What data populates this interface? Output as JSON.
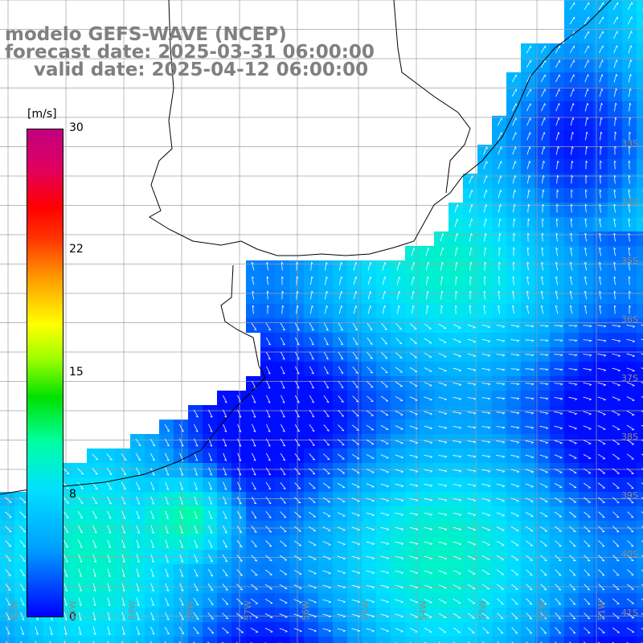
{
  "title": {
    "line1": "modelo GEFS-WAVE (NCEP)",
    "line2": "forecast date: 2025-03-31 06:00:00",
    "line3": "valid date: 2025-04-12 06:00:00"
  },
  "colorbar": {
    "unit": "[m/s]",
    "ticks": [
      "30",
      "22",
      "15",
      "8",
      "0"
    ],
    "tick_values": [
      30,
      22,
      15,
      8,
      0
    ],
    "range": [
      0,
      30
    ],
    "colors": [
      "#0000ff",
      "#00a0ff",
      "#00e0ff",
      "#00ffa0",
      "#00e000",
      "#a0ff00",
      "#ffff00",
      "#ffa000",
      "#ff0000",
      "#c00080"
    ]
  },
  "grid": {
    "lat_labels": [
      "33S",
      "34S",
      "35S",
      "36S",
      "37S",
      "38S",
      "39S",
      "40S",
      "41S"
    ],
    "lon_labels": [
      "61W",
      "60W",
      "59W",
      "58W",
      "57W",
      "56W",
      "55W",
      "54W",
      "53W",
      "52W",
      "51W"
    ]
  },
  "map": {
    "land_color": "#ffffff",
    "coast_color": "#000000",
    "arrow_color": "#ffffff"
  }
}
